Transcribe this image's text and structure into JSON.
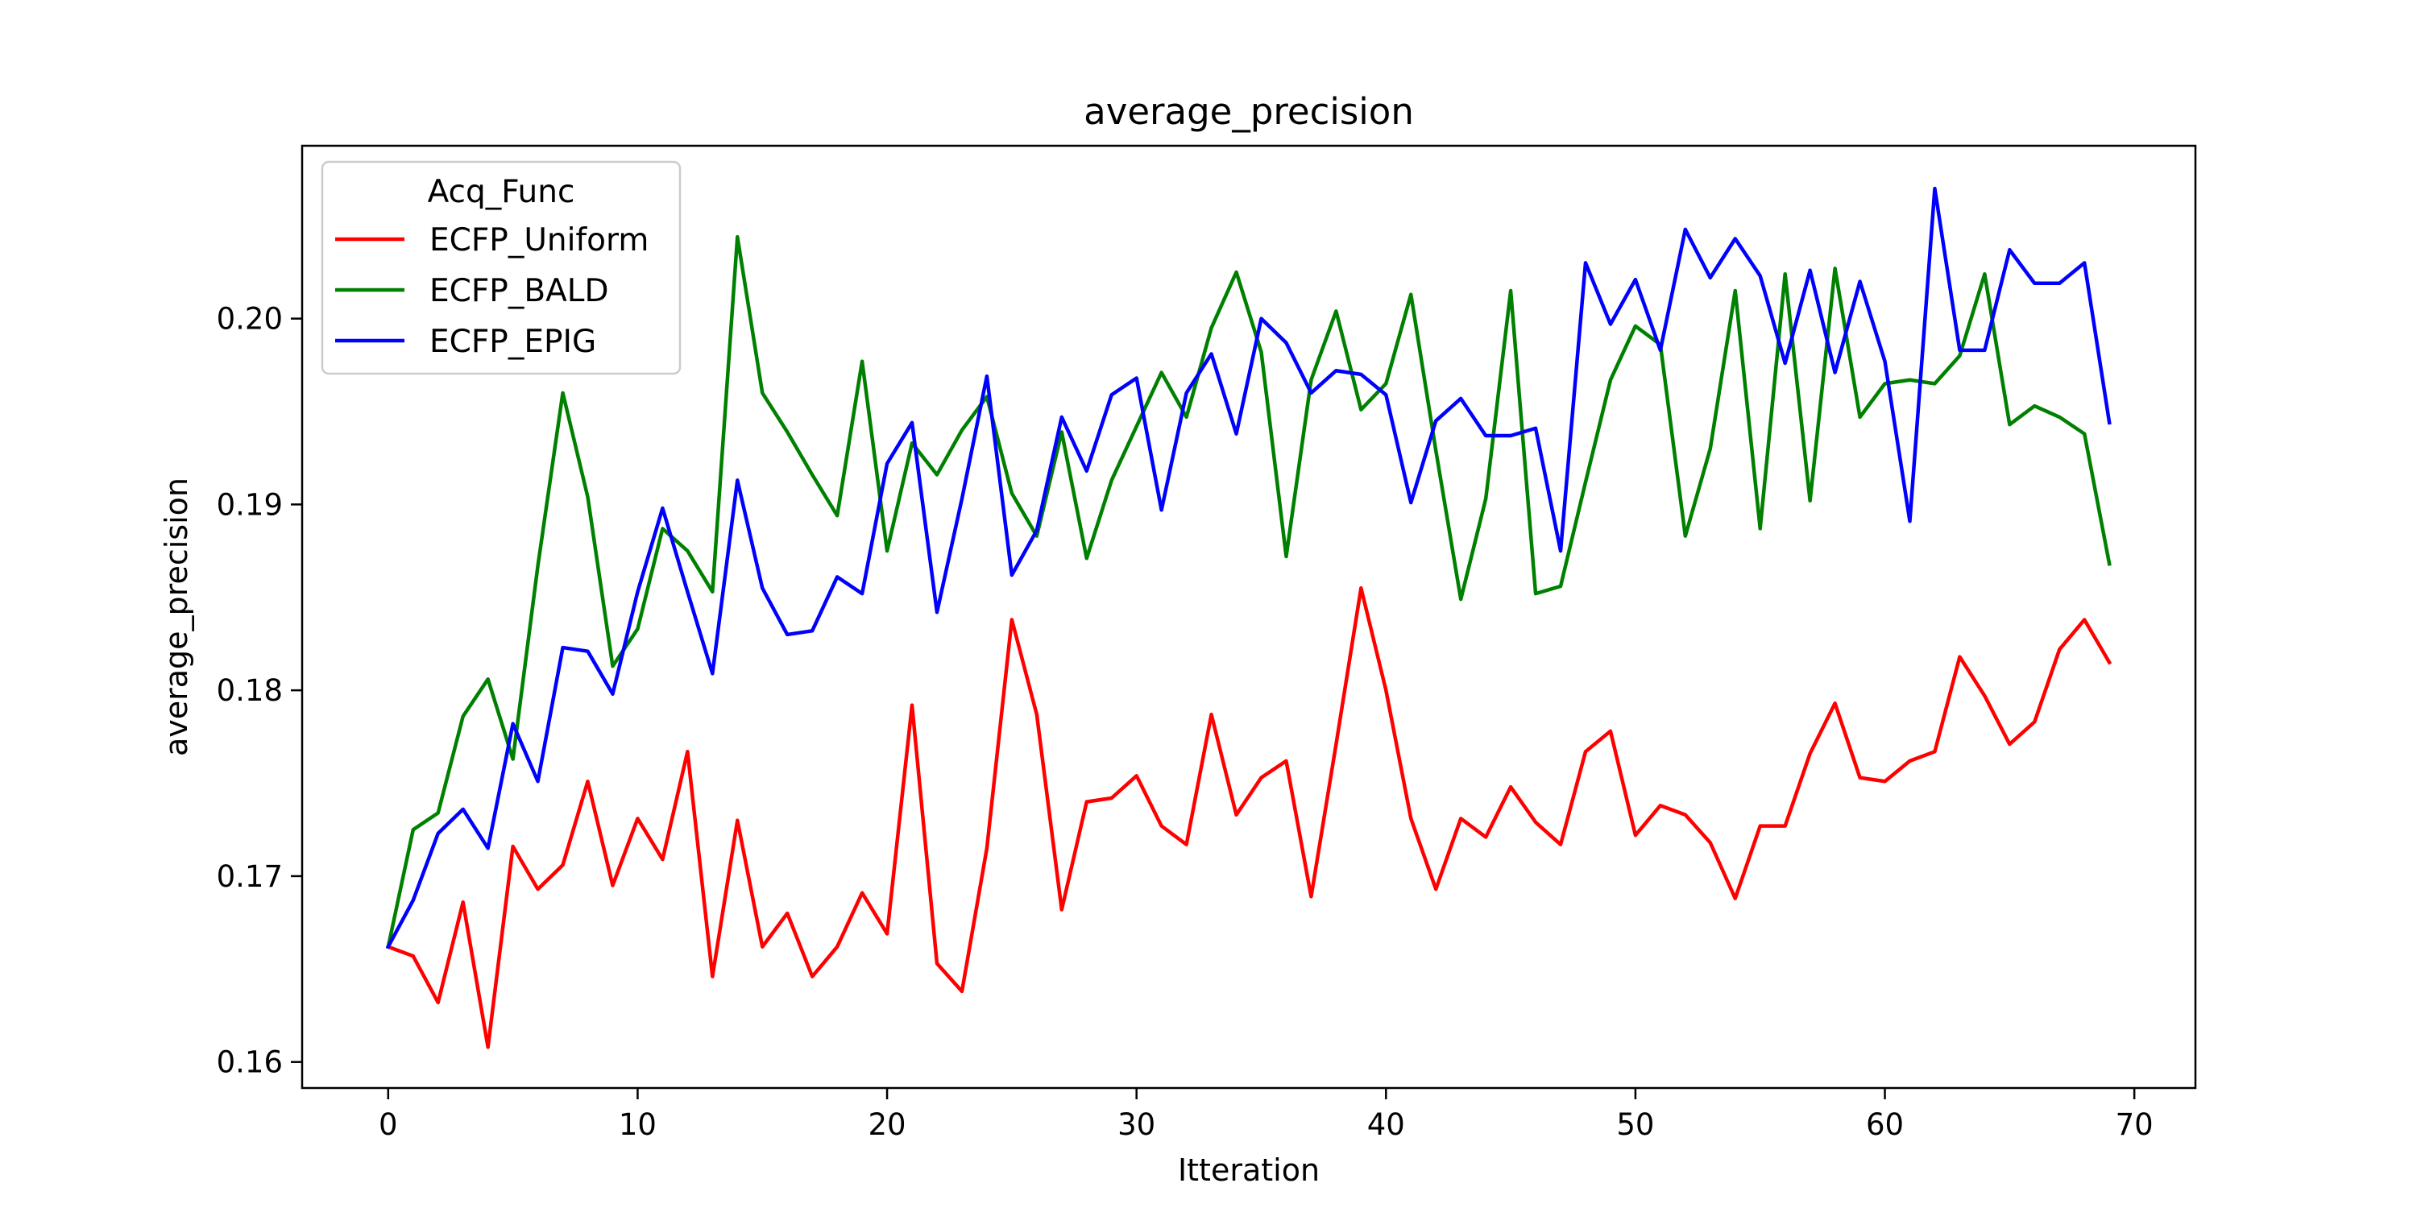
{
  "chart_data": {
    "type": "line",
    "title": "average_precision",
    "xlabel": "Itteration",
    "ylabel": "average_precision",
    "xlim": [
      -3.45,
      72.45
    ],
    "ylim": [
      0.1586,
      0.2093
    ],
    "xticks": [
      0,
      10,
      20,
      30,
      40,
      50,
      60,
      70
    ],
    "yticks": [
      0.16,
      0.17,
      0.18,
      0.19,
      0.2
    ],
    "ytick_labels": [
      "0.16",
      "0.17",
      "0.18",
      "0.19",
      "0.20"
    ],
    "grid": false,
    "legend": {
      "title": "Acq_Func",
      "placement": "top-left"
    },
    "series": [
      {
        "name": "ECFP_Uniform",
        "color": "#ff0000",
        "values": [
          0.1662,
          0.1657,
          0.1632,
          0.1686,
          0.1608,
          0.1716,
          0.1693,
          0.1706,
          0.1751,
          0.1695,
          0.1731,
          0.1709,
          0.1767,
          0.1646,
          0.173,
          0.1662,
          0.168,
          0.1646,
          0.1662,
          0.1691,
          0.1669,
          0.1792,
          0.1653,
          0.1638,
          0.1715,
          0.1838,
          0.1787,
          0.1682,
          0.174,
          0.1742,
          0.1754,
          0.1727,
          0.1717,
          0.1787,
          0.1733,
          0.1753,
          0.1762,
          0.1689,
          0.1771,
          0.1855,
          0.18,
          0.1731,
          0.1693,
          0.1731,
          0.1721,
          0.1748,
          0.1729,
          0.1717,
          0.1767,
          0.1778,
          0.1722,
          0.1738,
          0.1733,
          0.1718,
          0.1688,
          0.1727,
          0.1727,
          0.1766,
          0.1793,
          0.1753,
          0.1751,
          0.1762,
          0.1767,
          0.1818,
          0.1797,
          0.1771,
          0.1783,
          0.1822,
          0.1838,
          0.1815
        ]
      },
      {
        "name": "ECFP_BALD",
        "color": "#008000",
        "values": [
          0.1662,
          0.1725,
          0.1734,
          0.1786,
          0.1806,
          0.1763,
          0.1867,
          0.196,
          0.1904,
          0.1813,
          0.1833,
          0.1887,
          0.1875,
          0.1853,
          0.2044,
          0.196,
          0.1939,
          0.1916,
          0.1894,
          0.1977,
          0.1875,
          0.1933,
          0.1916,
          0.194,
          0.1958,
          0.1906,
          0.1883,
          0.1939,
          0.1871,
          0.1913,
          0.1942,
          0.1971,
          0.1947,
          0.1995,
          0.2025,
          0.1982,
          0.1872,
          0.1967,
          0.2004,
          0.1951,
          0.1965,
          0.2013,
          0.1929,
          0.1849,
          0.1903,
          0.2015,
          0.1852,
          0.1856,
          0.1912,
          0.1967,
          0.1996,
          0.1986,
          0.1883,
          0.193,
          0.2015,
          0.1887,
          0.2024,
          0.1902,
          0.2027,
          0.1947,
          0.1965,
          0.1967,
          0.1965,
          0.198,
          0.2024,
          0.1943,
          0.1953,
          0.1947,
          0.1938,
          0.1868
        ]
      },
      {
        "name": "ECFP_EPIG",
        "color": "#0000ff",
        "values": [
          0.1662,
          0.1687,
          0.1723,
          0.1736,
          0.1715,
          0.1782,
          0.1751,
          0.1823,
          0.1821,
          0.1798,
          0.1853,
          0.1898,
          0.1853,
          0.1809,
          0.1913,
          0.1855,
          0.183,
          0.1832,
          0.1861,
          0.1852,
          0.1922,
          0.1944,
          0.1842,
          0.1903,
          0.1969,
          0.1862,
          0.1886,
          0.1947,
          0.1918,
          0.1959,
          0.1968,
          0.1897,
          0.196,
          0.1981,
          0.1938,
          0.2,
          0.1987,
          0.196,
          0.1972,
          0.197,
          0.1959,
          0.1901,
          0.1945,
          0.1957,
          0.1937,
          0.1937,
          0.1941,
          0.1875,
          0.203,
          0.1997,
          0.2021,
          0.1983,
          0.2048,
          0.2022,
          0.2043,
          0.2023,
          0.1976,
          0.2026,
          0.1971,
          0.202,
          0.1977,
          0.1891,
          0.207,
          0.1983,
          0.1983,
          0.2037,
          0.2019,
          0.2019,
          0.203,
          0.1944
        ]
      }
    ]
  }
}
